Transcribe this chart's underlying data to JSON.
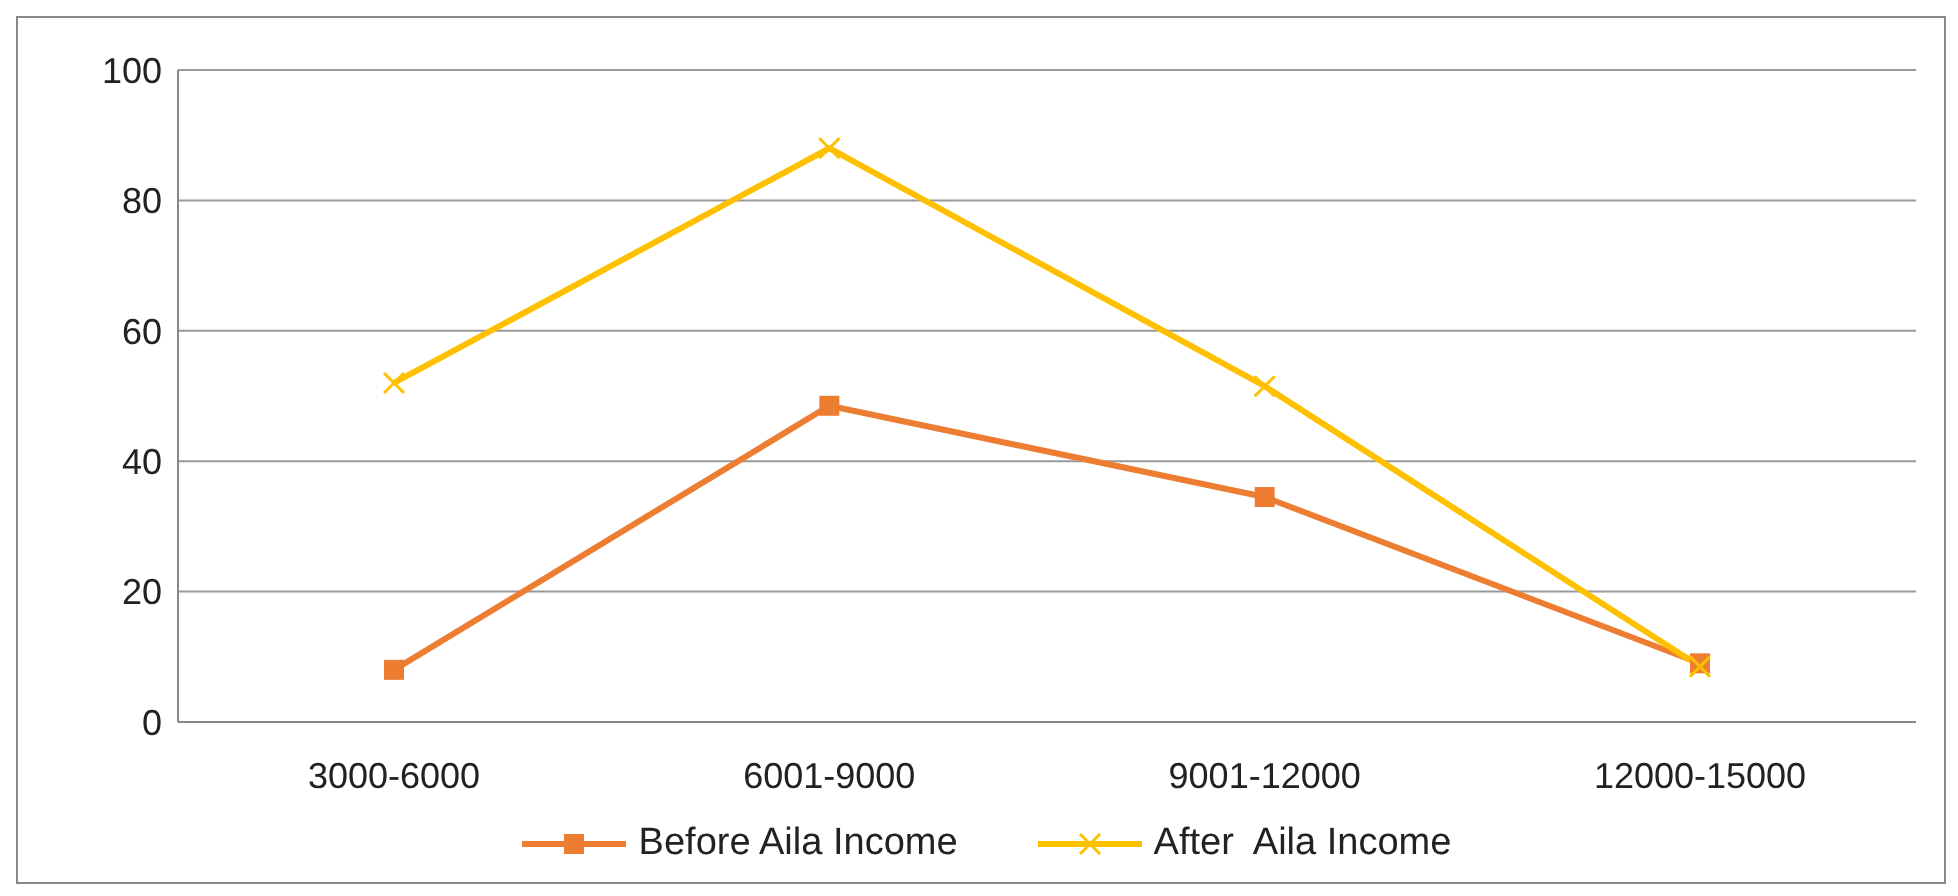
{
  "chart_data": {
    "type": "line",
    "categories": [
      "3000-6000",
      "6001-9000",
      "9001-12000",
      "12000-15000"
    ],
    "series": [
      {
        "name": "Before Aila Income",
        "color": "#ed7d31",
        "marker": "square",
        "values": [
          8,
          48.5,
          34.5,
          9
        ]
      },
      {
        "name": "After  Aila Income",
        "color": "#ffc000",
        "marker": "cross",
        "values": [
          52,
          88,
          51.5,
          8.5
        ]
      }
    ],
    "ylim": [
      0,
      100
    ],
    "yticks": [
      0,
      20,
      40,
      60,
      80,
      100
    ],
    "grid": "y",
    "legend": "bottom"
  }
}
